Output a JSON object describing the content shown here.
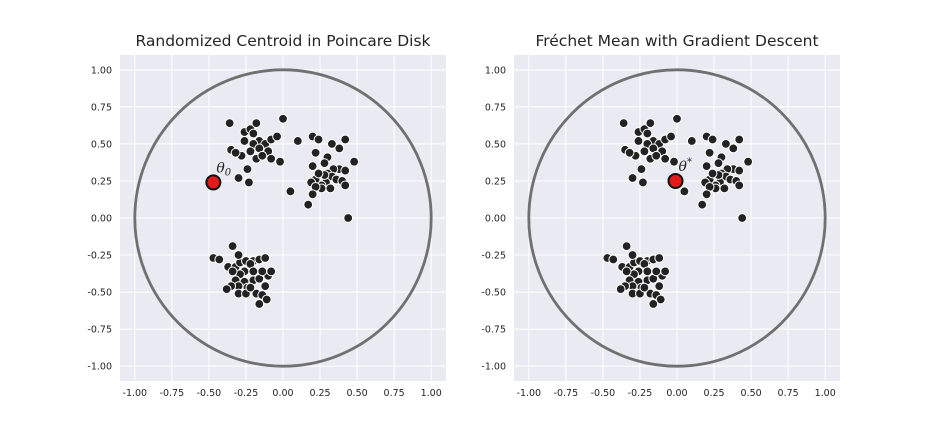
{
  "chart_data": [
    {
      "type": "scatter",
      "title": "Randomized Centroid in Poincare Disk",
      "xlim": [
        -1.1,
        1.1
      ],
      "ylim": [
        -1.1,
        1.1
      ],
      "ticks": [
        -1.0,
        -0.75,
        -0.5,
        -0.25,
        0.0,
        0.25,
        0.5,
        0.75,
        1.0
      ],
      "tick_labels": [
        "-1.00",
        "-0.75",
        "-0.50",
        "-0.25",
        "0.00",
        "0.25",
        "0.50",
        "0.75",
        "1.00"
      ],
      "grid": true,
      "boundary_circle_radius": 1.0,
      "points": [
        [
          -0.36,
          0.64
        ],
        [
          -0.26,
          0.58
        ],
        [
          -0.22,
          0.6
        ],
        [
          -0.18,
          0.64
        ],
        [
          -0.2,
          0.57
        ],
        [
          -0.16,
          0.52
        ],
        [
          -0.2,
          0.5
        ],
        [
          -0.26,
          0.52
        ],
        [
          -0.12,
          0.5
        ],
        [
          -0.08,
          0.53
        ],
        [
          -0.04,
          0.55
        ],
        [
          -0.1,
          0.45
        ],
        [
          -0.16,
          0.47
        ],
        [
          -0.22,
          0.45
        ],
        [
          -0.28,
          0.42
        ],
        [
          -0.35,
          0.46
        ],
        [
          -0.32,
          0.44
        ],
        [
          -0.18,
          0.4
        ],
        [
          -0.08,
          0.4
        ],
        [
          -0.02,
          0.38
        ],
        [
          -0.24,
          0.33
        ],
        [
          -0.3,
          0.27
        ],
        [
          -0.23,
          0.24
        ],
        [
          -0.14,
          0.42
        ],
        [
          0.0,
          0.67
        ],
        [
          0.2,
          0.55
        ],
        [
          0.24,
          0.53
        ],
        [
          0.42,
          0.53
        ],
        [
          0.33,
          0.5
        ],
        [
          0.1,
          0.52
        ],
        [
          0.22,
          0.44
        ],
        [
          0.38,
          0.47
        ],
        [
          0.48,
          0.38
        ],
        [
          0.3,
          0.41
        ],
        [
          0.28,
          0.37
        ],
        [
          0.2,
          0.35
        ],
        [
          0.38,
          0.33
        ],
        [
          0.42,
          0.32
        ],
        [
          0.34,
          0.33
        ],
        [
          0.3,
          0.3
        ],
        [
          0.33,
          0.28
        ],
        [
          0.36,
          0.26
        ],
        [
          0.29,
          0.24
        ],
        [
          0.26,
          0.22
        ],
        [
          0.22,
          0.26
        ],
        [
          0.19,
          0.24
        ],
        [
          0.28,
          0.29
        ],
        [
          0.24,
          0.3
        ],
        [
          0.4,
          0.25
        ],
        [
          0.42,
          0.22
        ],
        [
          0.32,
          0.2
        ],
        [
          0.26,
          0.2
        ],
        [
          0.22,
          0.21
        ],
        [
          0.2,
          0.16
        ],
        [
          0.17,
          0.09
        ],
        [
          0.05,
          0.18
        ],
        [
          0.44,
          0.0
        ],
        [
          -0.47,
          -0.27
        ],
        [
          -0.43,
          -0.28
        ],
        [
          -0.34,
          -0.19
        ],
        [
          -0.37,
          -0.33
        ],
        [
          -0.32,
          -0.33
        ],
        [
          -0.29,
          -0.3
        ],
        [
          -0.25,
          -0.29
        ],
        [
          -0.2,
          -0.29
        ],
        [
          -0.16,
          -0.28
        ],
        [
          -0.12,
          -0.27
        ],
        [
          -0.3,
          -0.25
        ],
        [
          -0.22,
          -0.31
        ],
        [
          -0.26,
          -0.36
        ],
        [
          -0.29,
          -0.38
        ],
        [
          -0.34,
          -0.36
        ],
        [
          -0.32,
          -0.42
        ],
        [
          -0.26,
          -0.43
        ],
        [
          -0.2,
          -0.42
        ],
        [
          -0.16,
          -0.41
        ],
        [
          -0.1,
          -0.39
        ],
        [
          -0.14,
          -0.36
        ],
        [
          -0.2,
          -0.36
        ],
        [
          -0.08,
          -0.36
        ],
        [
          -0.24,
          -0.47
        ],
        [
          -0.3,
          -0.46
        ],
        [
          -0.35,
          -0.46
        ],
        [
          -0.38,
          -0.48
        ],
        [
          -0.3,
          -0.51
        ],
        [
          -0.25,
          -0.51
        ],
        [
          -0.18,
          -0.51
        ],
        [
          -0.14,
          -0.52
        ],
        [
          -0.22,
          -0.47
        ],
        [
          -0.12,
          -0.46
        ],
        [
          -0.11,
          -0.55
        ],
        [
          -0.16,
          -0.58
        ]
      ],
      "centroid": {
        "x": -0.47,
        "y": 0.24,
        "label": "θ",
        "sub": "0"
      }
    },
    {
      "type": "scatter",
      "title": "Fréchet Mean with Gradient Descent",
      "xlim": [
        -1.1,
        1.1
      ],
      "ylim": [
        -1.1,
        1.1
      ],
      "ticks": [
        -1.0,
        -0.75,
        -0.5,
        -0.25,
        0.0,
        0.25,
        0.5,
        0.75,
        1.0
      ],
      "tick_labels": [
        "-1.00",
        "-0.75",
        "-0.50",
        "-0.25",
        "0.00",
        "0.25",
        "0.50",
        "0.75",
        "1.00"
      ],
      "grid": true,
      "boundary_circle_radius": 1.0,
      "same_points_as": 0,
      "centroid": {
        "x": -0.01,
        "y": 0.25,
        "label": "θ",
        "sup": "*"
      }
    }
  ],
  "colors": {
    "background": "#eaeaf2",
    "grid": "#ffffff",
    "circle": "#707070",
    "point_fill": "#222222",
    "point_edge": "#ffffff",
    "centroid_fill": "#e31a1c",
    "centroid_edge": "#111111"
  }
}
